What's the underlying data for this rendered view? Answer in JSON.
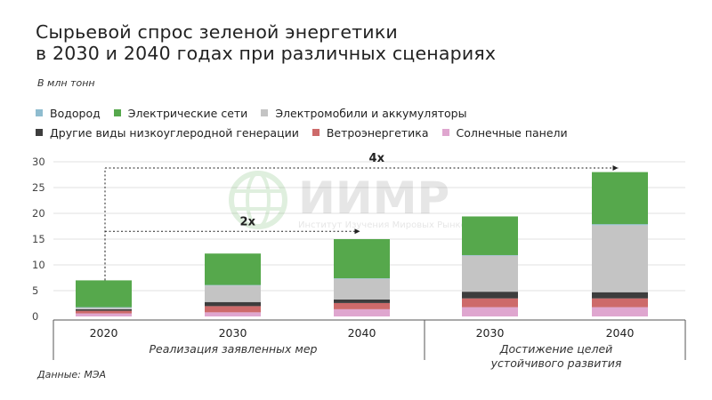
{
  "header": {
    "title_line1": "Сырьевой спрос зеленой энергетики",
    "title_line2": "в 2030 и 2040 годах при различных сценариях",
    "unit": "В млн тонн"
  },
  "legend": [
    {
      "name": "Водород",
      "color": "#8fbccf"
    },
    {
      "name": "Электрические сети",
      "color": "#56a84c"
    },
    {
      "name": "Электромобили и аккумуляторы",
      "color": "#c4c4c4"
    },
    {
      "name": "Другие виды низкоуглеродной генерации",
      "color": "#3d3d3d"
    },
    {
      "name": "Ветроэнергетика",
      "color": "#cd6a6a"
    },
    {
      "name": "Солнечные панели",
      "color": "#dfa6cf"
    }
  ],
  "watermark": {
    "brand": "ИИМР",
    "subtitle": "Институт Изучения Мировых Рынков"
  },
  "source": "Данные: МЭА",
  "chart_data": {
    "type": "bar",
    "stacked": true,
    "ylim": [
      0,
      30
    ],
    "yticks": [
      0,
      5,
      10,
      15,
      20,
      25,
      30
    ],
    "grid": true,
    "categories": [
      "2020",
      "2030",
      "2040",
      "2030",
      "2040"
    ],
    "groups": [
      {
        "label": "Реализация заявленных мер",
        "categories": [
          0,
          1,
          2
        ]
      },
      {
        "label_line1": "Достижение целей",
        "label_line2": "устойчивого развития",
        "categories": [
          3,
          4
        ]
      }
    ],
    "series": [
      {
        "name": "Солнечные панели",
        "color": "#dfa6cf",
        "values": [
          0.6,
          0.8,
          1.4,
          1.8,
          1.8
        ]
      },
      {
        "name": "Ветроэнергетика",
        "color": "#cd6a6a",
        "values": [
          0.5,
          1.2,
          1.2,
          1.7,
          1.7
        ]
      },
      {
        "name": "Другие виды низкоуглеродной генерации",
        "color": "#3d3d3d",
        "values": [
          0.3,
          0.8,
          0.7,
          1.3,
          1.2
        ]
      },
      {
        "name": "Электромобили и аккумуляторы",
        "color": "#c4c4c4",
        "values": [
          0.3,
          3.2,
          4.0,
          7.0,
          13.0
        ]
      },
      {
        "name": "Водород",
        "color": "#8fbccf",
        "values": [
          0.1,
          0.1,
          0.1,
          0.1,
          0.2
        ]
      },
      {
        "name": "Электрические сети",
        "color": "#56a84c",
        "values": [
          5.2,
          6.1,
          7.6,
          7.5,
          10.1
        ]
      }
    ],
    "annotations": [
      {
        "text": "2x",
        "from_category": 0,
        "to_category": 2,
        "level": 16.5
      },
      {
        "text": "4x",
        "from_category": 0,
        "to_category": 4,
        "level": 28.8
      }
    ]
  }
}
